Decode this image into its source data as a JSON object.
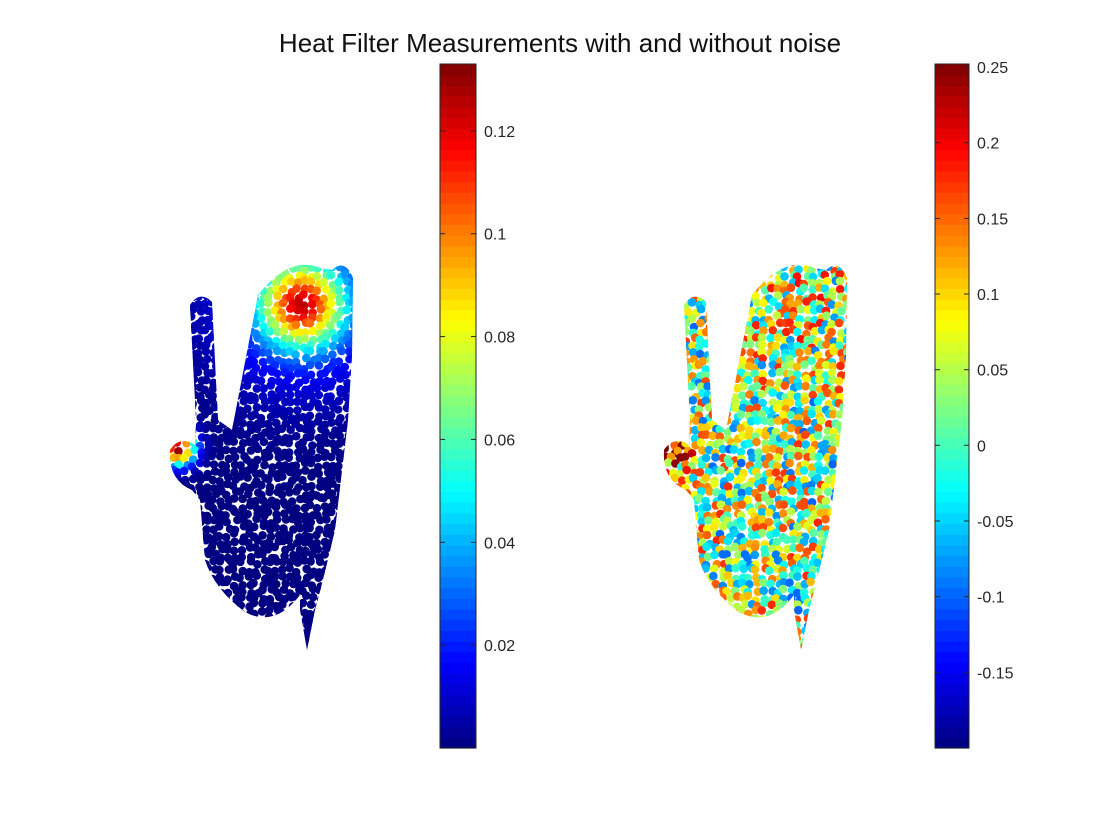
{
  "chart_data": {
    "title": "Heat Filter Measurements with and without noise",
    "colormap": "jet",
    "panels": [
      {
        "type": "scatter",
        "description_key": "without-noise",
        "point_value_range": [
          0.0,
          0.133
        ],
        "colorbar": {
          "limits": [
            0.0,
            0.133
          ],
          "ticks": [
            0.02,
            0.04,
            0.06,
            0.08,
            0.1,
            0.12
          ],
          "tick_labels": [
            "0.02",
            "0.04",
            "0.06",
            "0.08",
            "0.1",
            "0.12"
          ]
        }
      },
      {
        "type": "scatter",
        "description_key": "with-noise",
        "point_value_range": [
          -0.2,
          0.25
        ],
        "colorbar": {
          "limits": [
            -0.2,
            0.252
          ],
          "ticks": [
            -0.15,
            -0.1,
            -0.05,
            0,
            0.05,
            0.1,
            0.15,
            0.2,
            0.25
          ],
          "tick_labels": [
            "-0.15",
            "-0.1",
            "-0.05",
            "0",
            "0.05",
            "0.1",
            "0.15",
            "0.2",
            "0.25"
          ]
        }
      }
    ],
    "axes_visible": false,
    "grid": false
  }
}
